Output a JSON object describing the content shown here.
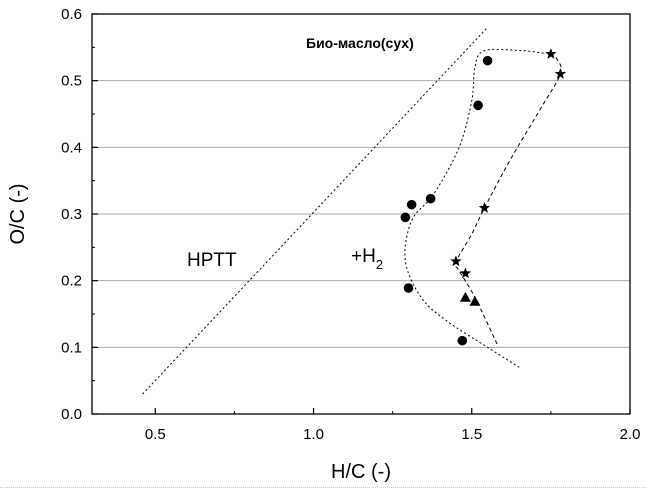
{
  "chart_data": {
    "type": "scatter",
    "xlabel": "H/C (-)",
    "ylabel": "O/C (-)",
    "xlim": [
      0.3,
      2.0
    ],
    "ylim": [
      0.0,
      0.6
    ],
    "xticks": [
      "0.5",
      "1.0",
      "1.5",
      "2.0"
    ],
    "yticks": [
      "0.0",
      "0.1",
      "0.2",
      "0.3",
      "0.4",
      "0.5",
      "0.6"
    ],
    "horizontal_grid": true,
    "annotations": {
      "bio_oil": "Био-масло(сух)",
      "hptt": "HPTT",
      "h2_plus": "+H",
      "h2_sub": "2"
    },
    "series": [
      {
        "marker": "circle",
        "points": [
          [
            1.55,
            0.53
          ],
          [
            1.52,
            0.463
          ],
          [
            1.37,
            0.323
          ],
          [
            1.31,
            0.314
          ],
          [
            1.29,
            0.295
          ],
          [
            1.3,
            0.189
          ],
          [
            1.47,
            0.11
          ]
        ]
      },
      {
        "marker": "star",
        "points": [
          [
            1.75,
            0.54
          ],
          [
            1.78,
            0.51
          ],
          [
            1.54,
            0.309
          ],
          [
            1.45,
            0.229
          ],
          [
            1.48,
            0.211
          ]
        ]
      },
      {
        "marker": "triangle",
        "points": [
          [
            1.48,
            0.175
          ],
          [
            1.51,
            0.169
          ]
        ]
      }
    ],
    "lines": [
      {
        "style": "dotted",
        "points": [
          [
            0.46,
            0.03
          ],
          [
            1.55,
            0.58
          ]
        ]
      },
      {
        "style": "dotted",
        "points": [
          [
            1.65,
            0.07
          ],
          [
            1.55,
            0.1
          ],
          [
            1.42,
            0.14
          ],
          [
            1.34,
            0.175
          ],
          [
            1.29,
            0.23
          ],
          [
            1.31,
            0.29
          ],
          [
            1.38,
            0.33
          ],
          [
            1.46,
            0.4
          ],
          [
            1.5,
            0.47
          ],
          [
            1.51,
            0.52
          ],
          [
            1.54,
            0.545
          ],
          [
            1.66,
            0.545
          ],
          [
            1.73,
            0.541
          ]
        ]
      },
      {
        "style": "dashed",
        "points": [
          [
            1.58,
            0.105
          ],
          [
            1.51,
            0.175
          ],
          [
            1.46,
            0.215
          ],
          [
            1.45,
            0.228
          ],
          [
            1.5,
            0.27
          ],
          [
            1.54,
            0.309
          ],
          [
            1.62,
            0.38
          ],
          [
            1.72,
            0.46
          ],
          [
            1.78,
            0.51
          ],
          [
            1.77,
            0.532
          ],
          [
            1.75,
            0.54
          ]
        ]
      }
    ]
  }
}
